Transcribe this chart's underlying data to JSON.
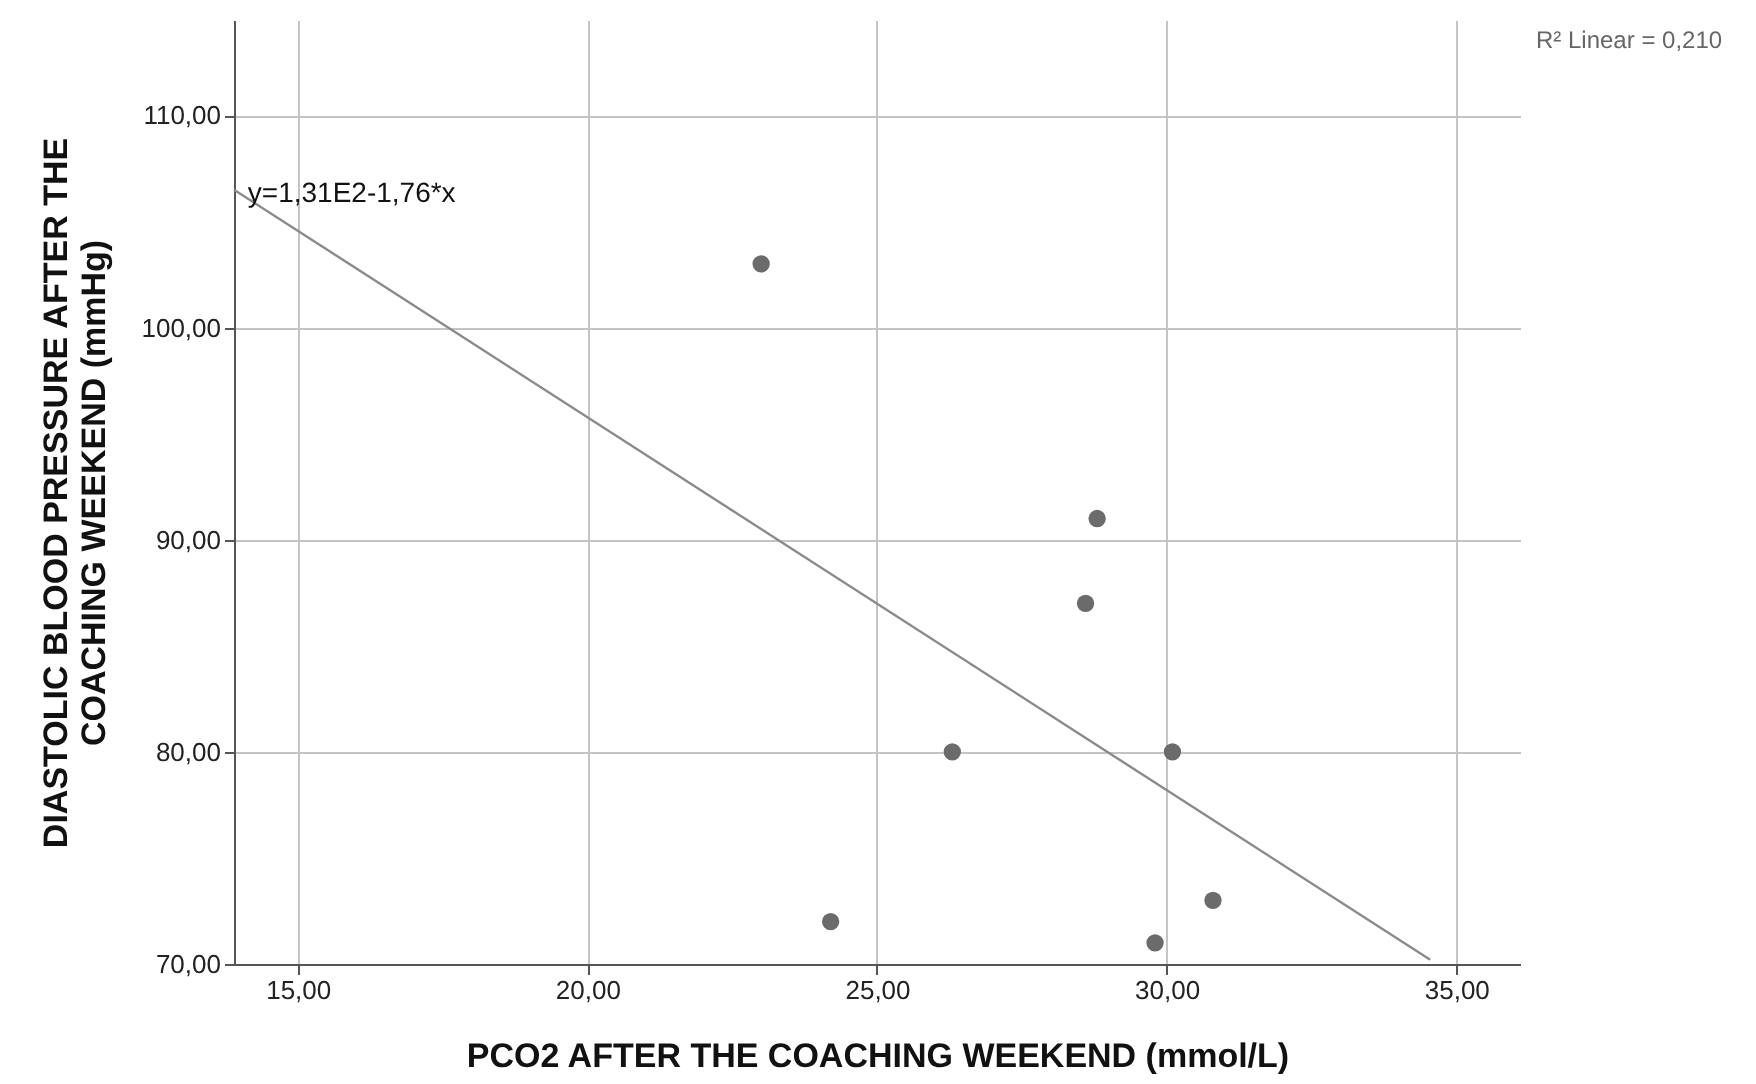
{
  "chart_data": {
    "type": "scatter",
    "xlabel": "PCO2 AFTER THE COACHING WEEKEND (mmol/L)",
    "ylabel": "DIASTOLIC BLOOD PRESSURE AFTER THE COACHING WEEKEND (mmHg)",
    "xlim": [
      13.9,
      36.1
    ],
    "xticks": [
      {
        "value": 15,
        "label": "15,00"
      },
      {
        "value": 20,
        "label": "20,00"
      },
      {
        "value": 25,
        "label": "25,00"
      },
      {
        "value": 30,
        "label": "30,00"
      },
      {
        "value": 35,
        "label": "35,00"
      }
    ],
    "ylim": [
      70,
      114.5
    ],
    "yticks": [
      {
        "value": 70,
        "label": "70,00"
      },
      {
        "value": 80,
        "label": "80,00"
      },
      {
        "value": 90,
        "label": "90,00"
      },
      {
        "value": 100,
        "label": "100,00"
      },
      {
        "value": 110,
        "label": "110,00"
      }
    ],
    "grid": true,
    "series": [
      {
        "marker": "circle",
        "color": "#6b6b6b",
        "x": [
          23.0,
          28.8,
          28.6,
          26.3,
          30.1,
          24.2,
          30.8,
          29.8
        ],
        "values": [
          103,
          91,
          87,
          80,
          80,
          72,
          73,
          71
        ]
      },
      {
        "type": "line",
        "color": "#8a8a8a",
        "x": [
          13.9,
          34.55
        ],
        "values": [
          106.5,
          70.2
        ]
      }
    ],
    "annotations": [
      {
        "text": "y=1,31E2-1,76*x",
        "x": 14,
        "y": 106.3
      },
      "R² Linear = 0,210"
    ]
  }
}
